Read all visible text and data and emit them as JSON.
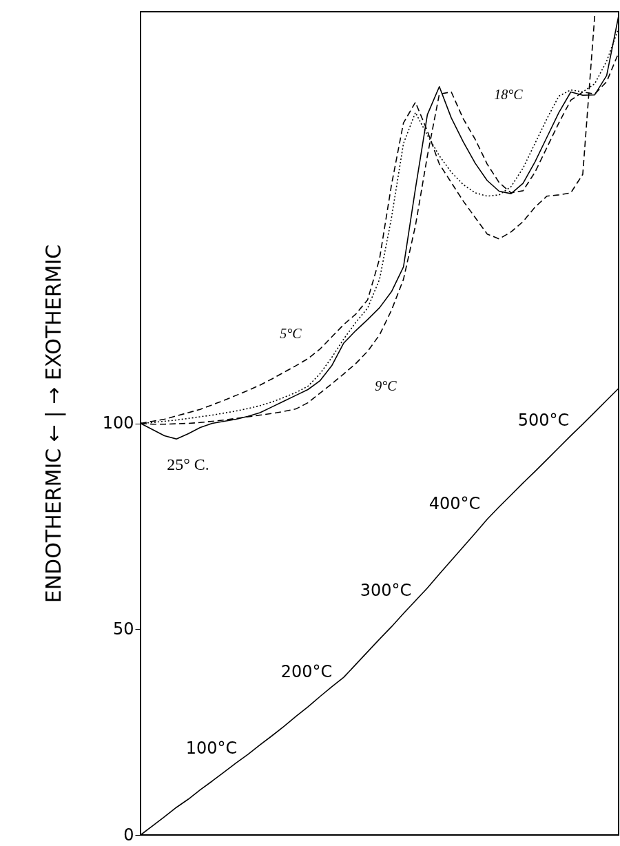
{
  "chart_data": {
    "type": "line",
    "ylabel": "ENDOTHERMIC ← | → EXOTHERMIC",
    "categories": [
      null,
      null,
      null,
      null,
      null,
      null,
      null,
      null,
      null,
      null,
      null,
      null,
      null,
      null,
      null,
      null,
      null,
      null,
      null,
      null,
      null,
      null,
      null,
      null,
      null,
      null,
      null,
      null,
      null,
      null,
      null,
      null,
      null,
      null,
      null,
      null,
      null,
      null,
      null,
      null,
      null
    ],
    "series": [
      {
        "color": "#000000",
        "line_style": "dashed",
        "values": [
          100,
          100.5,
          101,
          101.8,
          102.6,
          103.4,
          104.5,
          105.6,
          106.8,
          108,
          109.3,
          110.8,
          112.4,
          114,
          115.7,
          118,
          121,
          124,
          126.5,
          130,
          140,
          158,
          173,
          178,
          171,
          163,
          158.5,
          154,
          150,
          146,
          144.8,
          146.5,
          149,
          152.5,
          155.2,
          155.5,
          156,
          160.5,
          199,
          null,
          null
        ]
      },
      {
        "color": "#000000",
        "line_style": "dotted",
        "values": [
          100,
          100.2,
          100.5,
          100.8,
          101.2,
          101.6,
          102,
          102.5,
          103,
          103.6,
          104.3,
          105.2,
          106.3,
          107.5,
          109,
          112,
          116,
          120.5,
          124.5,
          128,
          135,
          150,
          168,
          175.5,
          170,
          165,
          161,
          158,
          156,
          155.2,
          155.5,
          157.5,
          162,
          168,
          174,
          179.5,
          181,
          180.5,
          182.5,
          188,
          196
        ]
      },
      {
        "color": "#000000",
        "line_style": "solid",
        "values": [
          100,
          98.5,
          97,
          96.2,
          97.5,
          99,
          100,
          100.5,
          101,
          101.7,
          102.6,
          104,
          105.4,
          106.8,
          108.2,
          110.3,
          114,
          119.5,
          122.5,
          125.2,
          128.1,
          132,
          138,
          157,
          175,
          181.8,
          174.2,
          168.4,
          163.2,
          159,
          156.4,
          155.8,
          158.3,
          163.5,
          169.5,
          175.5,
          180.5,
          179.7,
          179.8,
          184.5,
          199
        ]
      },
      {
        "color": "#000000",
        "line_style": "dashed",
        "values": [
          100,
          99.8,
          99.8,
          99.9,
          100,
          100.2,
          100.5,
          100.8,
          101.2,
          101.6,
          102,
          102.4,
          102.9,
          103.5,
          105,
          107.3,
          109.6,
          112,
          114.5,
          117.5,
          121.5,
          127.5,
          135,
          148,
          165,
          180,
          180.5,
          174,
          169,
          163,
          158.5,
          156,
          156.5,
          161,
          167,
          173,
          178.5,
          180.5,
          180,
          183,
          190
        ]
      },
      {
        "color": "#000000",
        "line_style": "solid",
        "values": [
          0,
          2.2,
          4.4,
          6.7,
          8.7,
          11,
          13.1,
          15.3,
          17.5,
          19.6,
          21.9,
          24.1,
          26.4,
          28.8,
          31.1,
          33.6,
          36,
          38.3,
          41.4,
          44.5,
          47.6,
          50.6,
          53.8,
          56.9,
          60,
          63.4,
          66.7,
          70,
          73.3,
          76.7,
          79.7,
          82.6,
          85.5,
          88.3,
          91.2,
          94.1,
          97,
          99.8,
          102.7,
          105.6,
          108.5
        ]
      }
    ],
    "ylim": [
      0,
      200
    ],
    "yticks": [
      0,
      50,
      100
    ],
    "grid": false,
    "tick_labels": "y",
    "marker": "none",
    "annotations": [
      "5°C",
      "9°C",
      "18°C",
      "25° C.",
      "100°C",
      "200°C",
      "300°C",
      "400°C",
      "500°C"
    ]
  }
}
